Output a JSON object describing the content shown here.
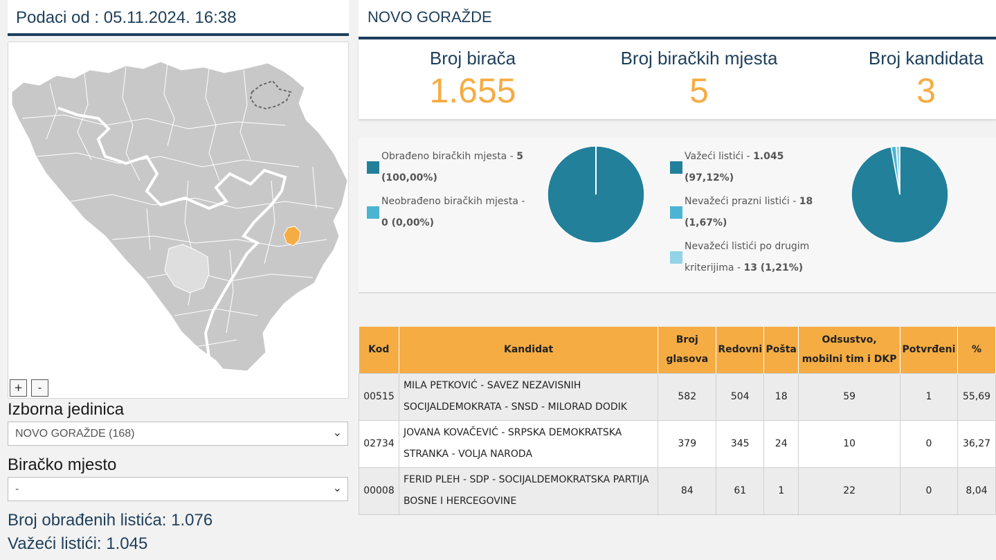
{
  "header": {
    "data_timestamp": "Podaci od : 05.11.2024. 16:38"
  },
  "map": {
    "zoom_in": "+",
    "zoom_out": "-",
    "highlight_color": "#f5ac43",
    "base_color": "#c8c8c8"
  },
  "filters": {
    "izborna_label": "Izborna jedinica",
    "izborna_value": "NOVO GORAŽDE (168)",
    "biracko_label": "Biračko mjesto",
    "biracko_value": "-"
  },
  "summary": {
    "obradjenih": "Broj obrađenih listića: 1.076",
    "vazeci": "Važeći listići: 1.045"
  },
  "region": {
    "title": "NOVO GORAŽDE"
  },
  "kpis": [
    {
      "label": "Broj birača",
      "value": "1.655"
    },
    {
      "label": "Broj biračkih mjesta",
      "value": "5"
    },
    {
      "label": "Broj kandidata",
      "value": "3"
    }
  ],
  "pie1": {
    "legend": [
      {
        "text": "Obrađeno biračkih mjesta - ",
        "line1_value": "5",
        "line2": "(100,00%)",
        "color": "#23809b"
      },
      {
        "text": "Neobrađeno biračkih mjesta -",
        "line2": "0 (0,00%)",
        "color": "#4cb4d3"
      }
    ],
    "values": [
      100.0,
      0.0
    ]
  },
  "pie2": {
    "legend": [
      {
        "text": "Važeći listići - ",
        "line1_value": "1.045",
        "line2": "(97,12%)",
        "color": "#23809b"
      },
      {
        "text": "Nevažeći prazni listići - ",
        "line1_value": "18",
        "line2": "(1,67%)",
        "color": "#4cb4d3"
      },
      {
        "text": "Nevažeći listići po drugim",
        "line2_text": "kriterijima - ",
        "line2": "13 (1,21%)",
        "color": "#93d3e8"
      }
    ],
    "values": [
      97.12,
      1.67,
      1.21
    ]
  },
  "table": {
    "headers": [
      "Kod",
      "Kandidat",
      "Broj glasova",
      "Redovni",
      "Pošta",
      "Odsustvo, mobilni tim i DKP",
      "Potvrđeni",
      "%"
    ],
    "rows": [
      {
        "kod": "00515",
        "kandidat": "MILA PETKOVIĆ - SAVEZ NEZAVISNIH SOCIJALDEMOKRATA - SNSD - MILORAD DODIK",
        "glasova": "582",
        "redovni": "504",
        "posta": "18",
        "odsustvo": "59",
        "potvrdjeni": "1",
        "pct": "55,69"
      },
      {
        "kod": "02734",
        "kandidat": "JOVANA KOVAČEVIĆ - SRPSKA DEMOKRATSKA STRANKA - VOLJA NARODA",
        "glasova": "379",
        "redovni": "345",
        "posta": "24",
        "odsustvo": "10",
        "potvrdjeni": "0",
        "pct": "36,27"
      },
      {
        "kod": "00008",
        "kandidat": "FERID PLEH - SDP - SOCIJALDEMOKRATSKA PARTIJA BOSNE I HERCEGOVINE",
        "glasova": "84",
        "redovni": "61",
        "posta": "1",
        "odsustvo": "22",
        "potvrdjeni": "0",
        "pct": "8,04"
      }
    ]
  }
}
